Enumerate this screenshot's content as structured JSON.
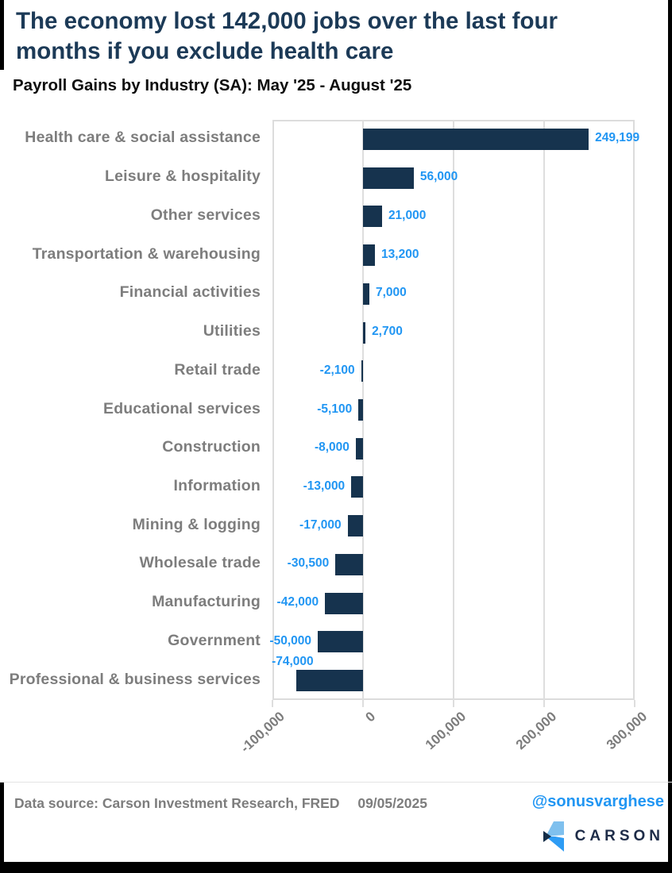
{
  "header": {
    "title_line1": "The economy lost 142,000 jobs over the last four",
    "title_line2": "months if you exclude health care",
    "subtitle": "Payroll Gains by Industry (SA): May '25 - August '25"
  },
  "chart_data": {
    "type": "bar",
    "orientation": "horizontal",
    "title": "Payroll Gains by Industry (SA): May '25 - August '25",
    "categories": [
      "Health care & social assistance",
      "Leisure & hospitality",
      "Other services",
      "Transportation & warehousing",
      "Financial activities",
      "Utilities",
      "Retail trade",
      "Educational services",
      "Construction",
      "Information",
      "Mining & logging",
      "Wholesale trade",
      "Manufacturing",
      "Government",
      "Professional & business services"
    ],
    "values": [
      249199,
      56000,
      21000,
      13200,
      7000,
      2700,
      -2100,
      -5100,
      -8000,
      -13000,
      -17000,
      -30500,
      -42000,
      -50000,
      -74000
    ],
    "value_labels": [
      "249,199",
      "56,000",
      "21,000",
      "13,200",
      "7,000",
      "2,700",
      "-2,100",
      "-5,100",
      "-8,000",
      "-13,000",
      "-17,000",
      "-30,500",
      "-42,000",
      "-50,000",
      "-74,000"
    ],
    "xlim": [
      -100000,
      300000
    ],
    "xticks": [
      -100000,
      0,
      100000,
      200000,
      300000
    ],
    "xtick_labels": [
      "-100,000",
      "0",
      "100,000",
      "200,000",
      "300,000"
    ],
    "grid": true,
    "legend": "none",
    "bar_color": "#16334e",
    "value_label_color": "#2196f3",
    "category_label_color": "#7d7d7d",
    "gridline_color": "#dedede"
  },
  "footer": {
    "source_prefix": "Data source:",
    "source_text": "Carson Investment Research, FRED",
    "date": "09/05/2025",
    "handle": "@sonusvarghese",
    "brand": "CARSON"
  },
  "colors": {
    "title_navy": "#1c3a57",
    "bar_navy": "#16334e",
    "value_blue": "#2196f3",
    "category_gray": "#7d7d7d",
    "brand_navy": "#1e2c48",
    "logo_light_blue": "#7fc0ee",
    "logo_mid_blue": "#2e9cf4",
    "frame_black": "#000000"
  }
}
